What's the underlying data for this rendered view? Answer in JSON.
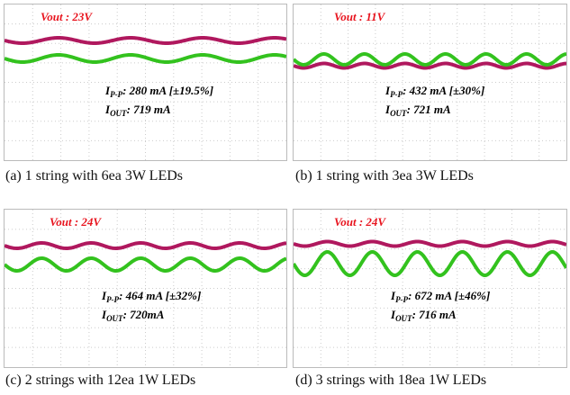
{
  "panels": [
    {
      "vout": "Vout : 23V",
      "ipp_symbol": "I",
      "ipp_sub": "P-P",
      "ipp_text": ": 280 mA [±19.5%]",
      "iout_symbol": "I",
      "iout_sub": "OUT",
      "iout_text": ": 719 mA",
      "caption": "(a) 1 string with 6ea 3W LEDs"
    },
    {
      "vout": "Vout : 11V",
      "ipp_symbol": "I",
      "ipp_sub": "P-P",
      "ipp_text": ": 432 mA [±30%]",
      "iout_symbol": "I",
      "iout_sub": "OUT",
      "iout_text": ": 721 mA",
      "caption": "(b) 1 string with 3ea 3W LEDs"
    },
    {
      "vout": "Vout : 24V",
      "ipp_symbol": "I",
      "ipp_sub": "P-P",
      "ipp_text": ": 464 mA [±32%]",
      "iout_symbol": "I",
      "iout_sub": "OUT",
      "iout_text": ": 720mA",
      "caption": "(c) 2 strings with 12ea 1W LEDs"
    },
    {
      "vout": "Vout : 24V",
      "ipp_symbol": "I",
      "ipp_sub": "P-P",
      "ipp_text": ": 672 mA [±46%]",
      "iout_symbol": "I",
      "iout_sub": "OUT",
      "iout_text": ": 716 mA",
      "caption": "(d) 3 strings with 18ea 1W LEDs"
    }
  ]
}
